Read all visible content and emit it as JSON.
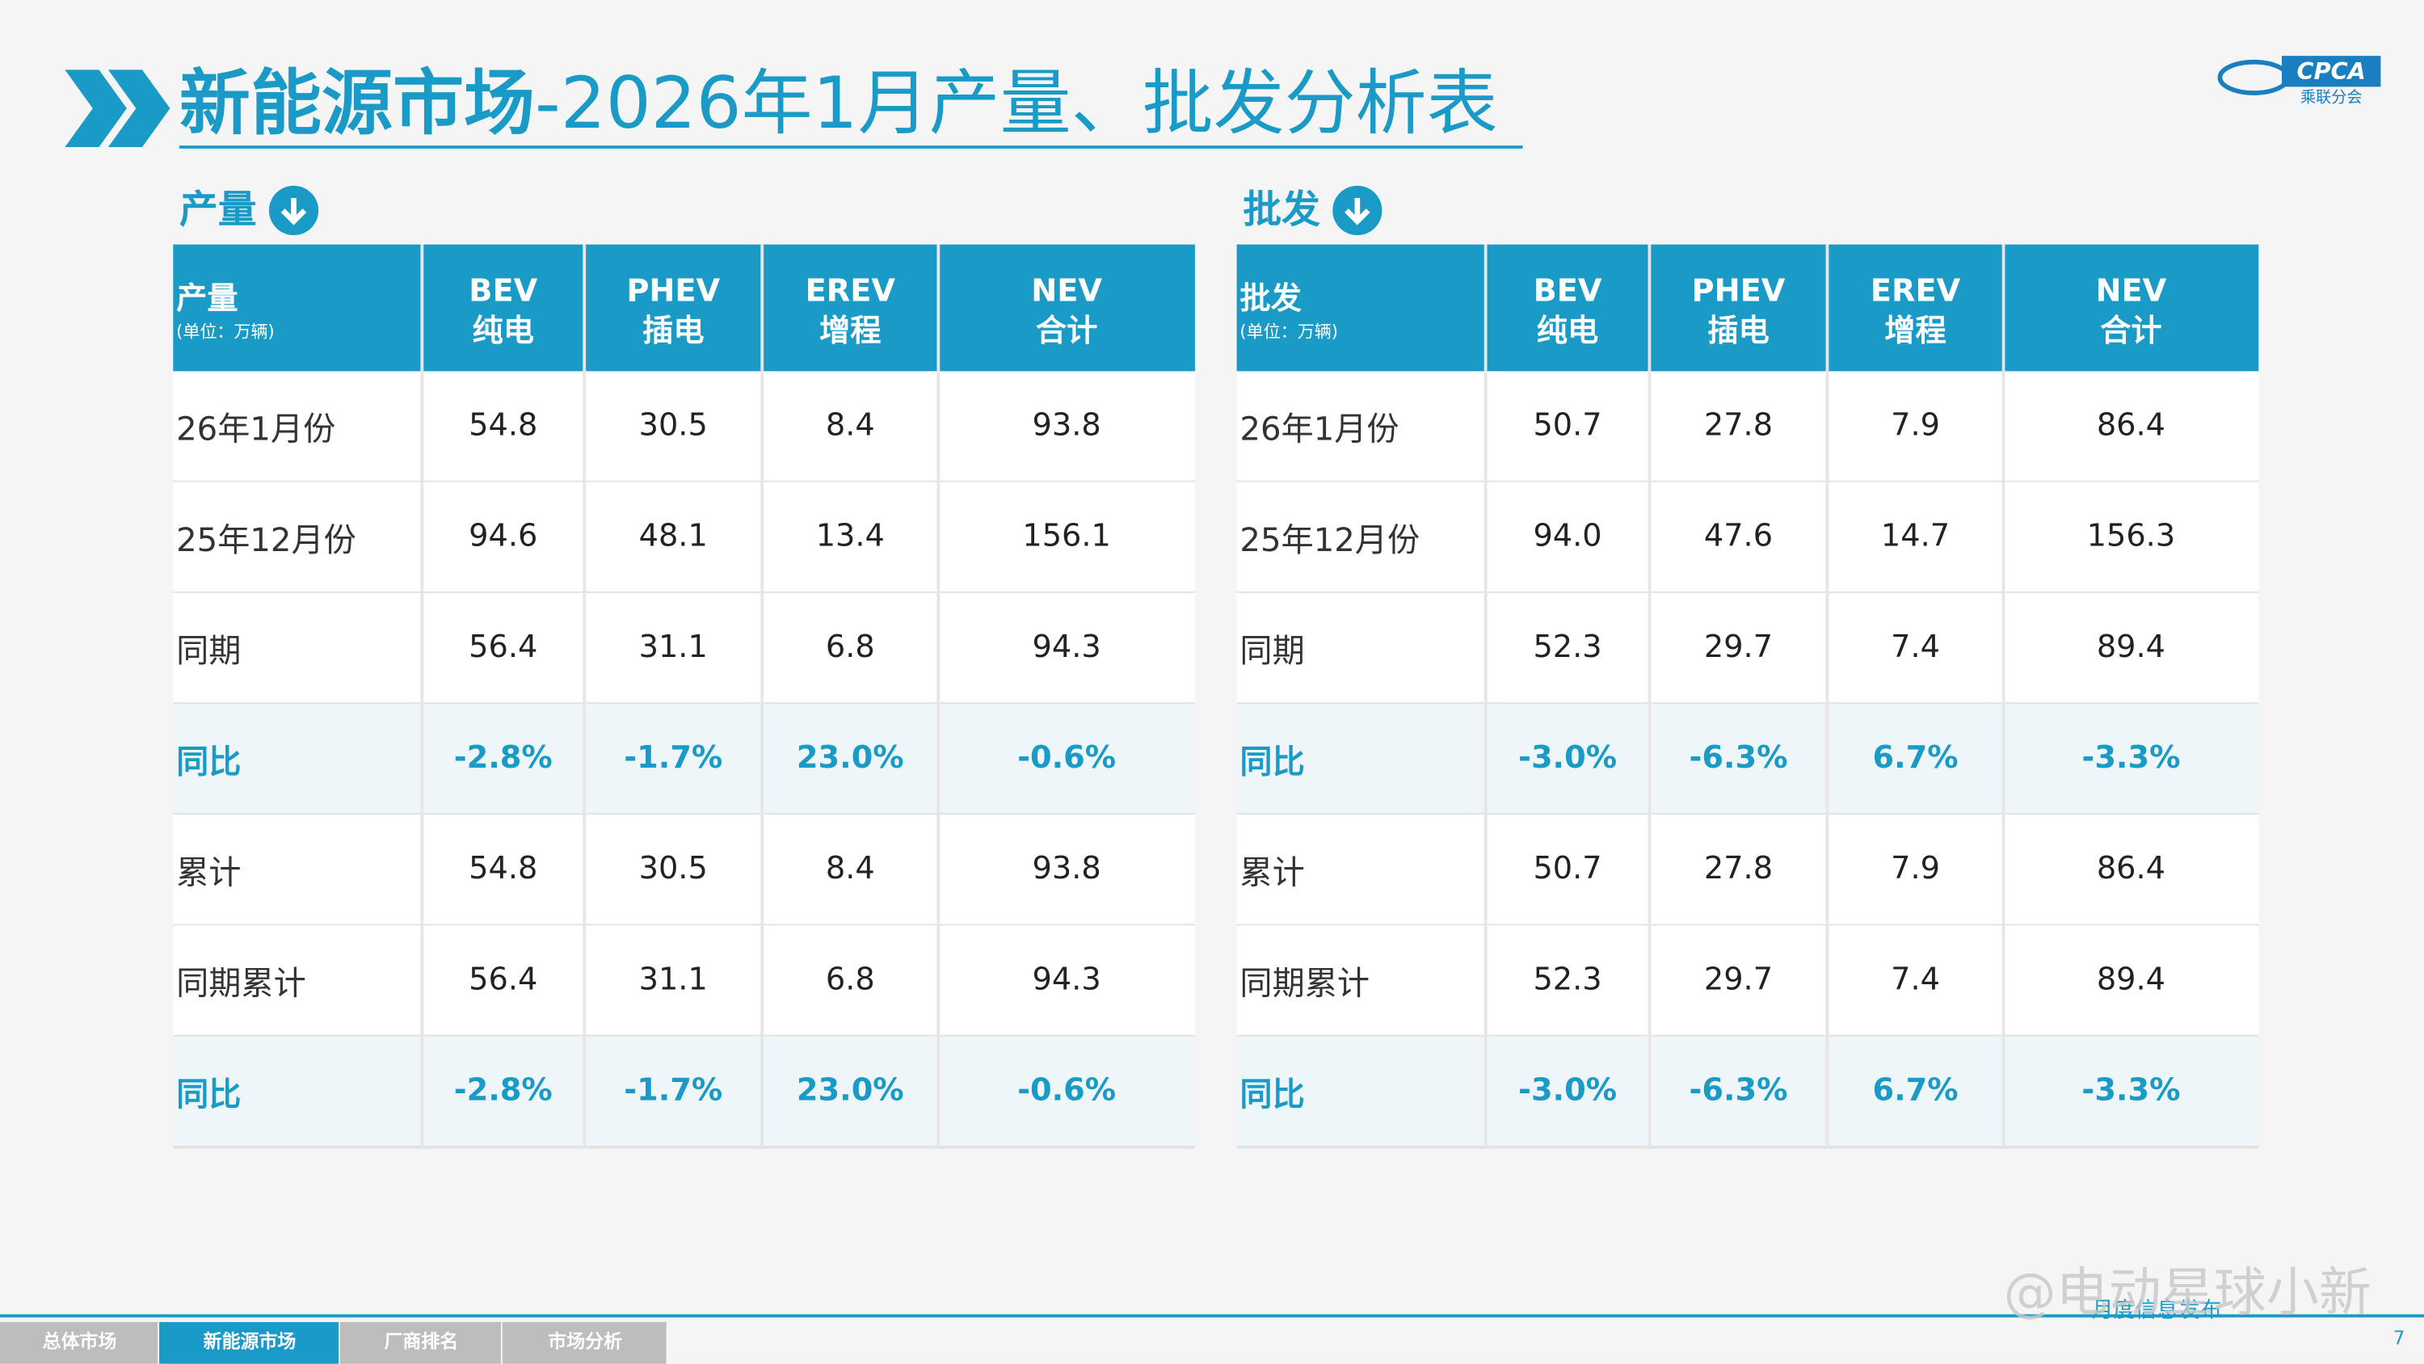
{
  "header": {
    "title_main": "新能源市场",
    "title_sub": "-2026年1月产量、批发分析表",
    "logo_text": "CPCA",
    "logo_sub": "乘联分会"
  },
  "tables": [
    {
      "section": "产量",
      "corner": {
        "title": "产量",
        "unit": "(单位：万辆)"
      },
      "columns": [
        {
          "code": "BEV",
          "name": "纯电"
        },
        {
          "code": "PHEV",
          "name": "插电"
        },
        {
          "code": "EREV",
          "name": "增程"
        },
        {
          "code": "NEV",
          "name": "合计"
        }
      ],
      "rows": [
        [
          "26年1月份",
          "54.8",
          "30.5",
          "8.4",
          "93.8"
        ],
        [
          "25年12月份",
          "94.6",
          "48.1",
          "13.4",
          "156.1"
        ],
        [
          "同期",
          "56.4",
          "31.1",
          "6.8",
          "94.3"
        ],
        [
          "同比",
          "-2.8%",
          "-1.7%",
          "23.0%",
          "-0.6%"
        ],
        [
          "累计",
          "54.8",
          "30.5",
          "8.4",
          "93.8"
        ],
        [
          "同期累计",
          "56.4",
          "31.1",
          "6.8",
          "94.3"
        ],
        [
          "同比",
          "-2.8%",
          "-1.7%",
          "23.0%",
          "-0.6%"
        ]
      ]
    },
    {
      "section": "批发",
      "corner": {
        "title": "批发",
        "unit": "(单位：万辆)"
      },
      "columns": [
        {
          "code": "BEV",
          "name": "纯电"
        },
        {
          "code": "PHEV",
          "name": "插电"
        },
        {
          "code": "EREV",
          "name": "增程"
        },
        {
          "code": "NEV",
          "name": "合计"
        }
      ],
      "rows": [
        [
          "26年1月份",
          "50.7",
          "27.8",
          "7.9",
          "86.4"
        ],
        [
          "25年12月份",
          "94.0",
          "47.6",
          "14.7",
          "156.3"
        ],
        [
          "同期",
          "52.3",
          "29.7",
          "7.4",
          "89.4"
        ],
        [
          "同比",
          "-3.0%",
          "-6.3%",
          "6.7%",
          "-3.3%"
        ],
        [
          "累计",
          "50.7",
          "27.8",
          "7.9",
          "86.4"
        ],
        [
          "同期累计",
          "52.3",
          "29.7",
          "7.4",
          "89.4"
        ],
        [
          "同比",
          "-3.0%",
          "-6.3%",
          "6.7%",
          "-3.3%"
        ]
      ]
    }
  ],
  "footer": {
    "tabs": [
      "总体市场",
      "新能源市场",
      "厂商排名",
      "市场分析"
    ],
    "note": "月度信息发布",
    "watermark": "@电动星球小新",
    "page": "7"
  }
}
